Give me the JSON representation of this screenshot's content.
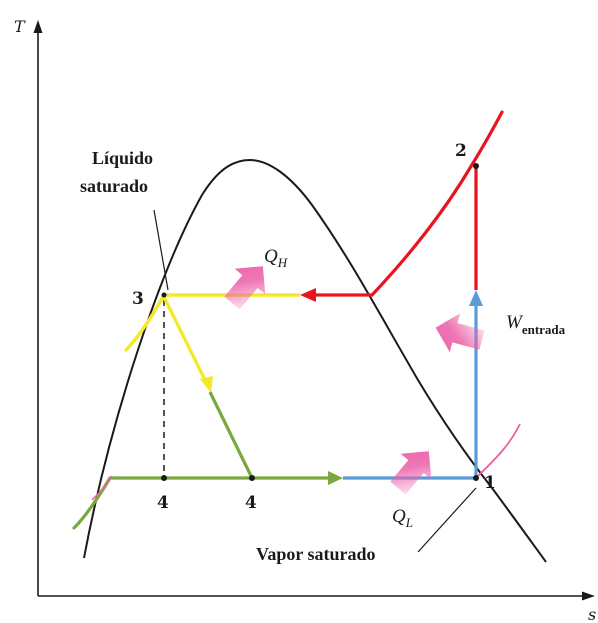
{
  "axes": {
    "y_label": "T",
    "x_label": "s"
  },
  "labels": {
    "liquido_line1": "Líquido",
    "liquido_line2": "saturado",
    "vapor": "Vapor saturado",
    "point_1": "1",
    "point_2": "2",
    "point_3": "3",
    "point_4_isentropic": "4",
    "point_4_actual": "4",
    "q_h_main": "Q",
    "q_h_sub": "H",
    "q_l_main": "Q",
    "q_l_sub": "L",
    "w_main": "W",
    "w_sub": "entrada"
  },
  "colors": {
    "dome": "#1a1a1a",
    "superheat": "#e8141f",
    "condensing": "#f5e82a",
    "expansion": "#7aa83e",
    "evaporating": "#5b9bd8",
    "arrow": "#ec5fa8"
  }
}
